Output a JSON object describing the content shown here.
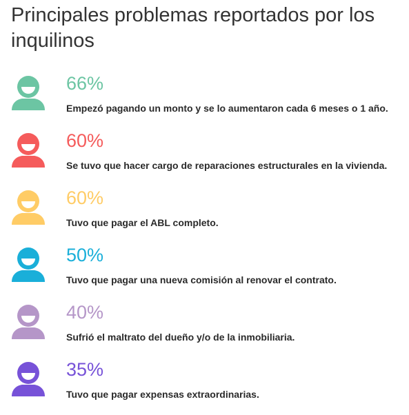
{
  "title": "Principales problemas reportados por los inquilinos",
  "chart_data": {
    "type": "table",
    "title": "Principales problemas reportados por los inquilinos",
    "items": [
      {
        "value": 66,
        "label": "66%",
        "text": "Empezó pagando un monto y se lo aumentaron cada 6 meses o 1 año.",
        "color": "#6cc5a3"
      },
      {
        "value": 60,
        "label": "60%",
        "text": "Se tuvo que hacer cargo de reparaciones estructurales en la vivienda.",
        "color": "#f55b5b"
      },
      {
        "value": 60,
        "label": "60%",
        "text": "Tuvo que pagar el ABL completo.",
        "color": "#ffcc66"
      },
      {
        "value": 50,
        "label": "50%",
        "text": "Tuvo que pagar una nueva comisión al renovar el contrato.",
        "color": "#1aafd9"
      },
      {
        "value": 40,
        "label": "40%",
        "text": "Sufrió el maltrato del dueño y/o de la inmobiliaria.",
        "color": "#b596c8"
      },
      {
        "value": 35,
        "label": "35%",
        "text": "Tuvo que pagar expensas extraordinarias.",
        "color": "#7752d8"
      }
    ]
  },
  "icon": "person-icon"
}
